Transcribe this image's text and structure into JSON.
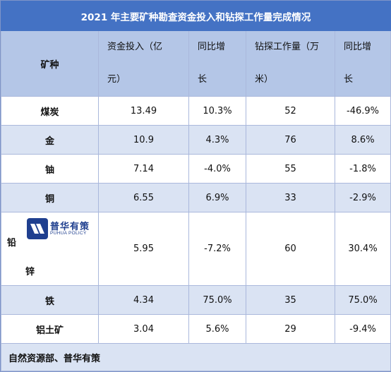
{
  "title": "2021 年主要矿种勘查资金投入和钻探工作量完成情况",
  "headers": {
    "mineral": "矿种",
    "investment": [
      "资金投入（亿",
      "元）"
    ],
    "yoy1": [
      "同比增",
      "长"
    ],
    "drilling": [
      "钻探工作量（万",
      "米）"
    ],
    "yoy2": [
      "同比增",
      "长"
    ]
  },
  "rows": [
    {
      "name": "煤炭",
      "investment": "13.49",
      "yoy1": "10.3%",
      "drilling": "52",
      "yoy2": "-46.9%"
    },
    {
      "name": "金",
      "investment": "10.9",
      "yoy1": "4.3%",
      "drilling": "76",
      "yoy2": "8.6%"
    },
    {
      "name": "铀",
      "investment": "7.14",
      "yoy1": "-4.0%",
      "drilling": "55",
      "yoy2": "-1.8%"
    },
    {
      "name": "铜",
      "investment": "6.55",
      "yoy1": "6.9%",
      "drilling": "33",
      "yoy2": "-2.9%"
    },
    {
      "name_top": "铅",
      "name_bottom": "锌",
      "investment": "5.95",
      "yoy1": "-7.2%",
      "drilling": "60",
      "yoy2": "30.4%"
    },
    {
      "name": "铁",
      "investment": "4.34",
      "yoy1": "75.0%",
      "drilling": "35",
      "yoy2": "75.0%"
    },
    {
      "name": "铝土矿",
      "investment": "3.04",
      "yoy1": "5.6%",
      "drilling": "29",
      "yoy2": "-9.4%"
    }
  ],
  "logo": {
    "name_cn": "普华有策",
    "name_en": "PUHUA POLICY",
    "color": "#1f3f8f"
  },
  "source": "自然资源部、普华有策",
  "colors": {
    "title_bg": "#4472c4",
    "header_bg": "#b4c6e7",
    "band_bg": "#dae3f3",
    "border": "#aab8dc"
  }
}
